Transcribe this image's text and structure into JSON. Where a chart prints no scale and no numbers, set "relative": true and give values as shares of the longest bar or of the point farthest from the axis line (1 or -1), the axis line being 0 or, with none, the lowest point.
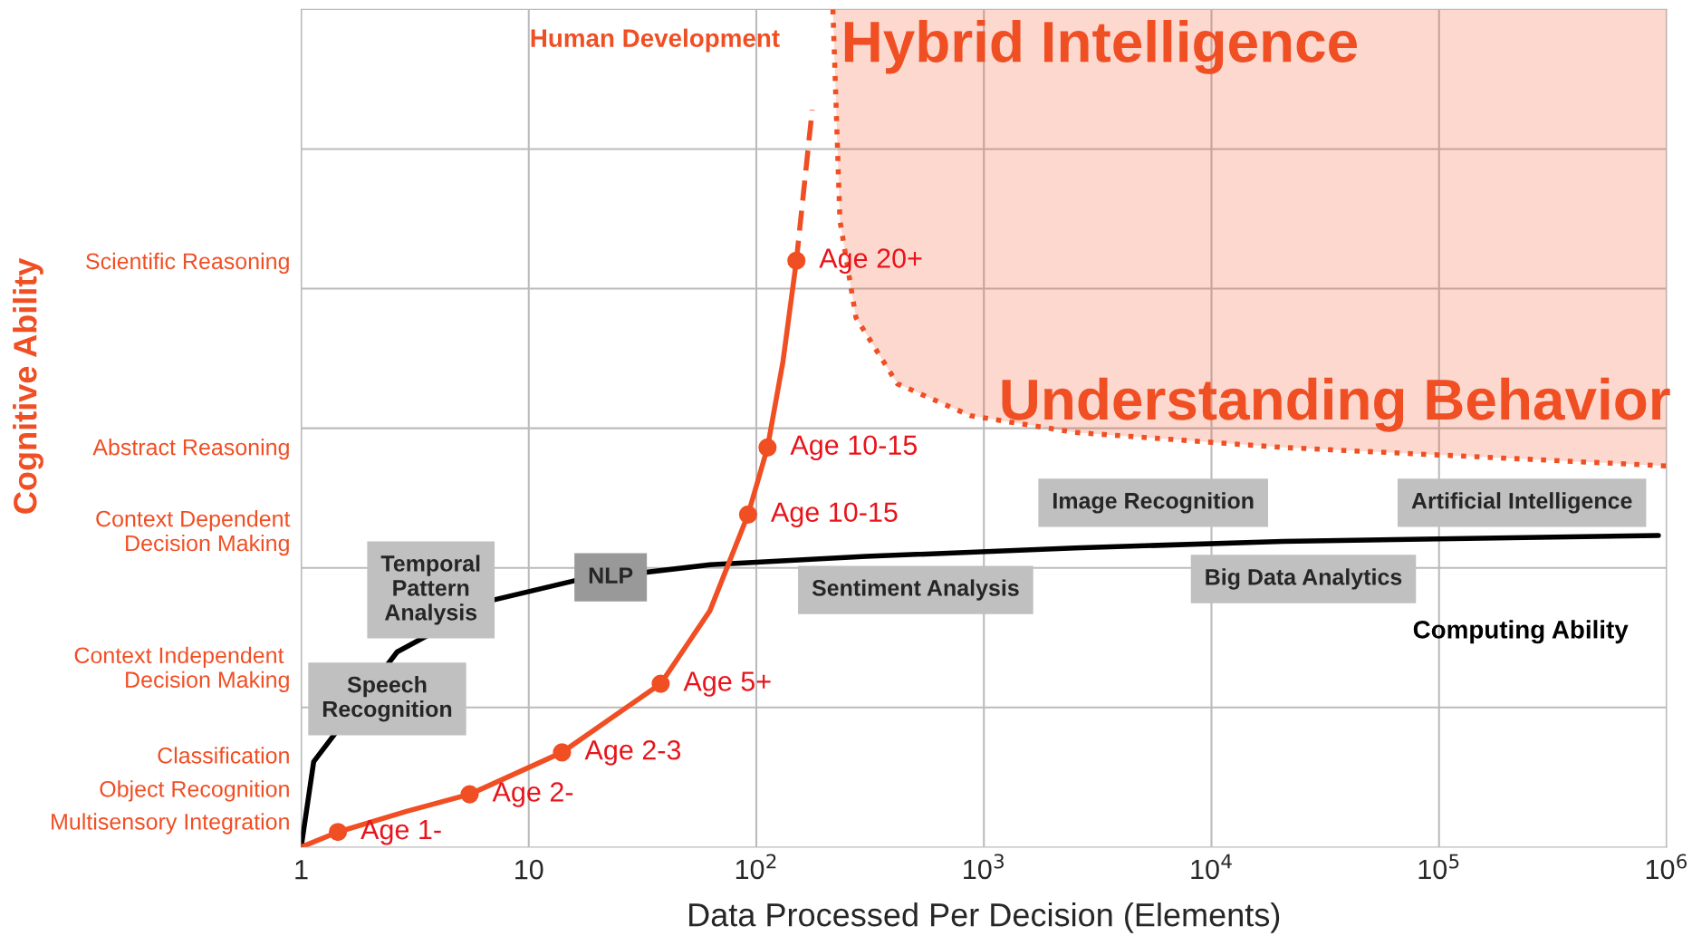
{
  "chart_data": {
    "type": "line",
    "relative": true,
    "xlabel": "Data Processed Per Decision (Elements)",
    "log": "x",
    "xlim": [
      1,
      1000000
    ],
    "xticks": [
      1,
      10,
      {
        "value": 100,
        "label": "10$^{2}$"
      },
      {
        "value": 1000,
        "label": "10$^{3}$"
      },
      {
        "value": 10000,
        "label": "10$^{4}$"
      },
      {
        "value": 100000,
        "label": "10$^{5}$"
      },
      {
        "value": 1000000,
        "label": "10$^{6}$"
      }
    ],
    "grid": true,
    "series": [
      {
        "color": "#f04e23",
        "line_style": "dotted",
        "x": [
          217,
          233,
          274,
          417,
          871,
          2512,
          20650,
          1000000
        ],
        "values": [
          1.0,
          0.748,
          0.632,
          0.553,
          0.515,
          0.495,
          0.477,
          0.455
        ],
        "lower": [
          1.0,
          0.748,
          0.632,
          0.553,
          0.515,
          0.495,
          0.477,
          0.455
        ],
        "upper": [
          1,
          1,
          1,
          1,
          1,
          1,
          1,
          1
        ]
      },
      {
        "color": "#000000",
        "line_style": "solid",
        "x": [
          1,
          1.135,
          2.64,
          7.0,
          15.9,
          62.5,
          304,
          2512,
          20650,
          920000
        ],
        "values": [
          0,
          0.102,
          0.233,
          0.295,
          0.318,
          0.337,
          0.347,
          0.357,
          0.365,
          0.372
        ]
      },
      {
        "color": "#f04e23",
        "line_style": "solid",
        "x": [
          1,
          1.45,
          2.93,
          5.5,
          14,
          24.2,
          38,
          62.5,
          92,
          112,
          131,
          150
        ],
        "values": [
          0,
          0.018,
          0.043,
          0.063,
          0.113,
          0.158,
          0.195,
          0.282,
          0.397,
          0.477,
          0.58,
          0.7
        ]
      },
      {
        "color": "#f04e23",
        "line_style": "dashed",
        "x": [
          150,
          176
        ],
        "values": [
          0.7,
          0.88
        ]
      },
      {
        "type": "scatter",
        "color": "#f04e23",
        "marker": "circle",
        "x": [
          1.45,
          5.5,
          14,
          38,
          92,
          112,
          150
        ],
        "values": [
          0.018,
          0.063,
          0.113,
          0.195,
          0.397,
          0.477,
          0.7
        ]
      }
    ],
    "annotations": [
      "Speech\nRecognition",
      "Temporal\nPattern\nAnalysis",
      {
        "text": "NLP",
        "x": 22.9,
        "y": 0.322
      },
      "Sentiment Analysis",
      "Image Recognition",
      "Big Data Analytics",
      "Artificial Intelligence",
      {
        "text": "Age 1-",
        "x": 1.45,
        "y": 0.018
      },
      {
        "text": "Age 2-",
        "x": 5.5,
        "y": 0.063
      },
      {
        "text": "Age 2-3",
        "x": 14,
        "y": 0.113
      },
      {
        "text": "Age 5+",
        "x": 38,
        "y": 0.195
      },
      {
        "text": "Age 10-15",
        "x": 92,
        "y": 0.397
      },
      {
        "text": "Age 10-15",
        "x": 112,
        "y": 0.477
      },
      {
        "text": "Age 20+",
        "x": 150,
        "y": 0.7
      },
      "Human Development",
      "Computing Ability",
      "Hybrid Intelligence",
      "Understanding Behavior",
      "Multisensory Integration",
      "Object Recognition",
      "Classification",
      "Context Independent \nDecision Making",
      "Context Dependent\nDecision Making",
      "Abstract Reasoning",
      "Scientific Reasoning",
      "Cognitive Ability"
    ]
  }
}
